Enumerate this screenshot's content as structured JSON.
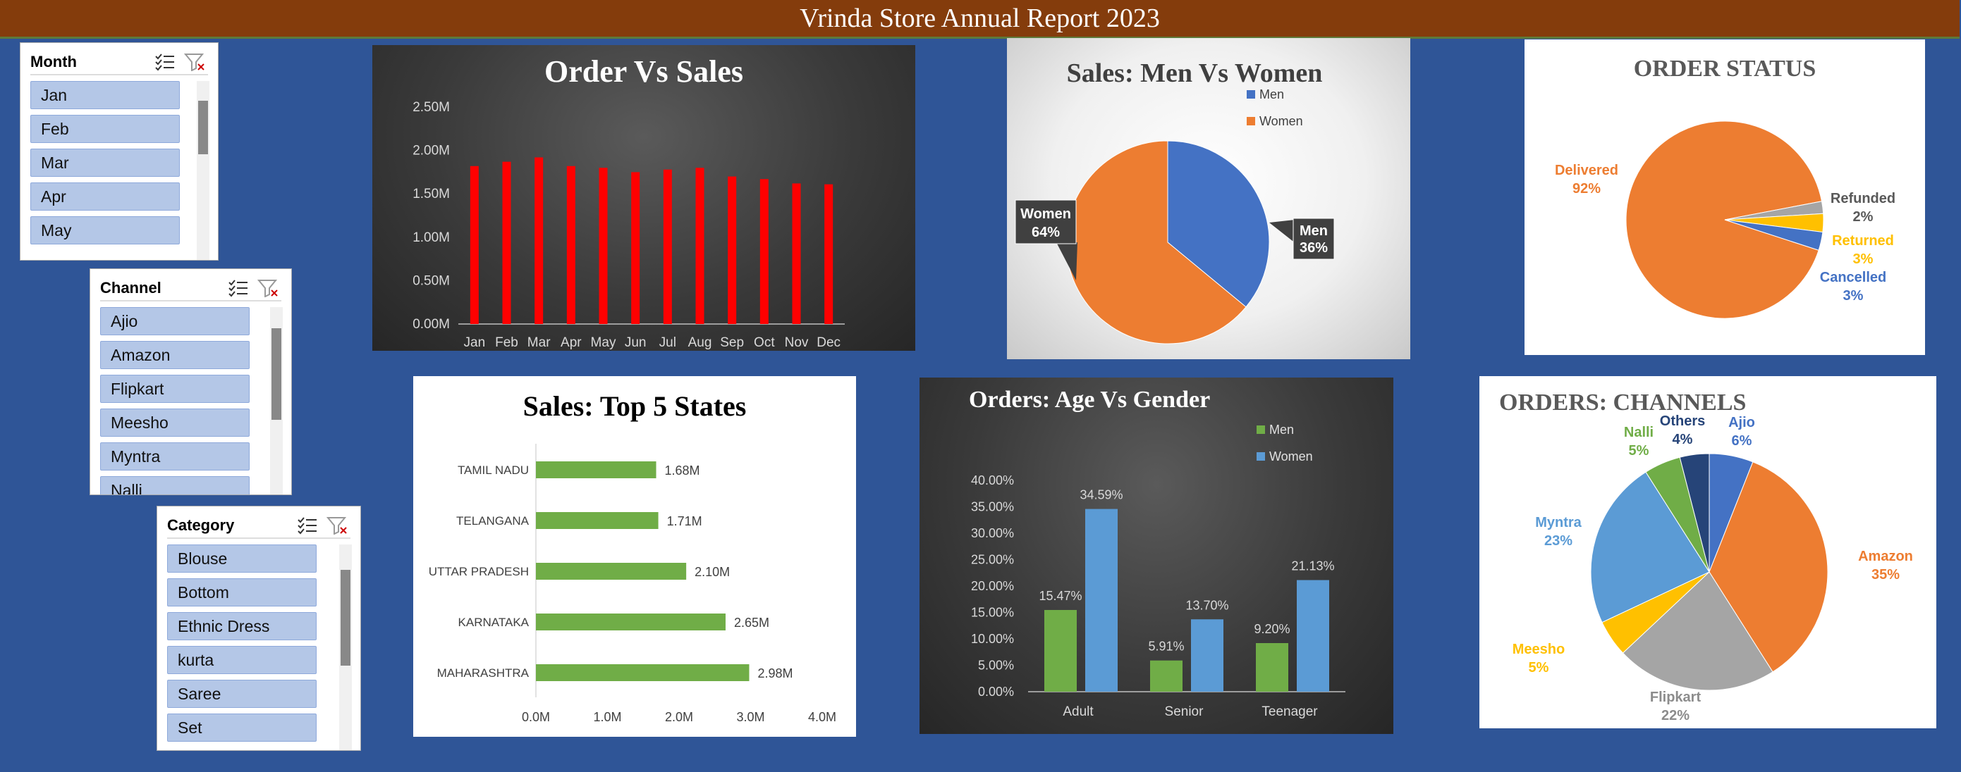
{
  "header": {
    "title": "Vrinda Store Annual Report 2023"
  },
  "slicers": [
    {
      "title": "Month",
      "items": [
        "Jan",
        "Feb",
        "Mar",
        "Apr",
        "May"
      ]
    },
    {
      "title": "Channel",
      "items": [
        "Ajio",
        "Amazon",
        "Flipkart",
        "Meesho",
        "Myntra",
        "Nalli"
      ]
    },
    {
      "title": "Category",
      "items": [
        "Blouse",
        "Bottom",
        "Ethnic Dress",
        "kurta",
        "Saree",
        "Set"
      ]
    }
  ],
  "icons": {
    "multiselect": "multi-select-icon",
    "clear": "clear-filter-icon"
  },
  "colors": {
    "background": "#2F5597",
    "header": "#843C0C",
    "bar_red": "#FF0000",
    "men": "#4472C4",
    "women": "#ED7D31",
    "green": "#70AD47",
    "gold": "#FFC000",
    "gray": "#A5A5A5",
    "light_blue": "#5B9BD5",
    "navy": "#264478"
  },
  "chart_data": [
    {
      "id": "order-vs-sales",
      "type": "bar",
      "title": "Order Vs Sales",
      "categories": [
        "Jan",
        "Feb",
        "Mar",
        "Apr",
        "May",
        "Jun",
        "Jul",
        "Aug",
        "Sep",
        "Oct",
        "Nov",
        "Dec"
      ],
      "values": [
        1.82,
        1.87,
        1.92,
        1.82,
        1.8,
        1.75,
        1.78,
        1.8,
        1.7,
        1.67,
        1.62,
        1.61
      ],
      "ylim": [
        0,
        2.5
      ],
      "yticks": [
        "0.00M",
        "0.50M",
        "1.00M",
        "1.50M",
        "2.00M",
        "2.50M"
      ],
      "grid": false
    },
    {
      "id": "sales-men-women",
      "type": "pie",
      "title": "Sales: Men Vs Women",
      "slices": [
        {
          "name": "Men",
          "value": 36,
          "label": "36%"
        },
        {
          "name": "Women",
          "value": 64,
          "label": "64%"
        }
      ],
      "legend": "top-right"
    },
    {
      "id": "order-status",
      "type": "pie",
      "title": "ORDER STATUS",
      "slices": [
        {
          "name": "Delivered",
          "value": 92,
          "label": "92%"
        },
        {
          "name": "Refunded",
          "value": 2,
          "label": "2%"
        },
        {
          "name": "Returned",
          "value": 3,
          "label": "3%"
        },
        {
          "name": "Cancelled",
          "value": 3,
          "label": "3%"
        }
      ]
    },
    {
      "id": "top-states",
      "type": "bar",
      "orientation": "horizontal",
      "title": "Sales: Top 5 States",
      "categories": [
        "TAMIL NADU",
        "TELANGANA",
        "UTTAR PRADESH",
        "KARNATAKA",
        "MAHARASHTRA"
      ],
      "values": [
        1.68,
        1.71,
        2.1,
        2.65,
        2.98
      ],
      "labels": [
        "1.68M",
        "1.71M",
        "2.10M",
        "2.65M",
        "2.98M"
      ],
      "xlim": [
        0,
        4
      ],
      "xticks": [
        "0.0M",
        "1.0M",
        "2.0M",
        "3.0M",
        "4.0M"
      ]
    },
    {
      "id": "age-gender",
      "type": "bar",
      "title": "Orders: Age Vs Gender",
      "categories": [
        "Adult",
        "Senior",
        "Teenager"
      ],
      "series": [
        {
          "name": "Men",
          "values": [
            15.47,
            5.91,
            9.2
          ],
          "labels": [
            "15.47%",
            "5.91%",
            "9.20%"
          ]
        },
        {
          "name": "Women",
          "values": [
            34.59,
            13.7,
            21.13
          ],
          "labels": [
            "34.59%",
            "13.70%",
            "21.13%"
          ]
        }
      ],
      "ylim": [
        0,
        40
      ],
      "yticks": [
        "0.00%",
        "5.00%",
        "10.00%",
        "15.00%",
        "20.00%",
        "25.00%",
        "30.00%",
        "35.00%",
        "40.00%"
      ],
      "legend": "top-right"
    },
    {
      "id": "channels",
      "type": "pie",
      "title": "ORDERS: CHANNELS",
      "slices": [
        {
          "name": "Ajio",
          "value": 6,
          "label": "6%"
        },
        {
          "name": "Amazon",
          "value": 35,
          "label": "35%"
        },
        {
          "name": "Flipkart",
          "value": 22,
          "label": "22%"
        },
        {
          "name": "Meesho",
          "value": 5,
          "label": "5%"
        },
        {
          "name": "Myntra",
          "value": 23,
          "label": "23%"
        },
        {
          "name": "Nalli",
          "value": 5,
          "label": "5%"
        },
        {
          "name": "Others",
          "value": 4,
          "label": "4%"
        }
      ]
    }
  ]
}
